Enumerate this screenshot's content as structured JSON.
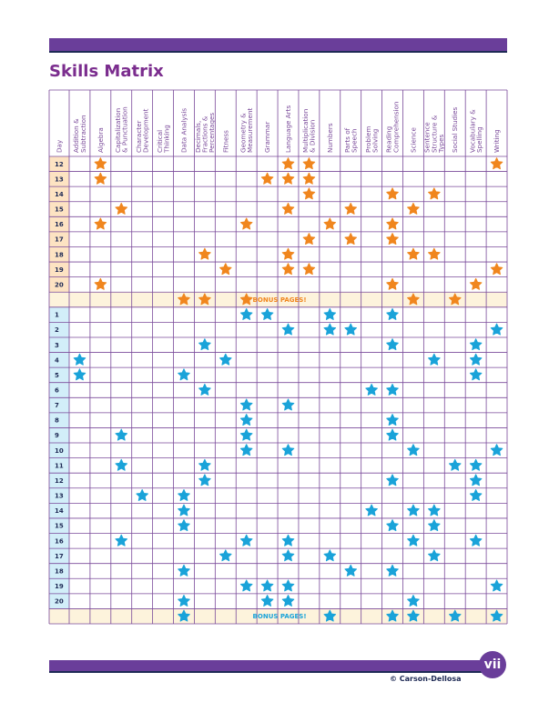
{
  "page": {
    "title": "Skills Matrix",
    "page_number": "vii",
    "copyright": "© Carson-Dellosa"
  },
  "colors": {
    "frame": "#6a3e9a",
    "navy": "#1e2a55",
    "orange_star": "#f0861e",
    "blue_star": "#1aa3d9",
    "orange_label_bg": "#fde3c2",
    "blue_label_bg": "#d2eef9",
    "bonus_row_bg": "#fdf3dc"
  },
  "table": {
    "columns": [
      "Day",
      "Addition & Subtraction",
      "Algebra",
      "Capitalization & Punctuation",
      "Character Development",
      "Critical Thinking",
      "Data Analysis",
      "Decimals, Fractions & Percentages",
      "Fitness",
      "Geometry & Measurement",
      "Grammar",
      "Language Arts",
      "Multiplication & Division",
      "Numbers",
      "Parts of Speech",
      "Problem Solving",
      "Reading Comprehension",
      "Science",
      "Sentence Structure & Types",
      "Social Studies",
      "Vocabulary & Spelling",
      "Writing"
    ],
    "rows": [
      {
        "label": "12",
        "color": "orange",
        "stars": [
          2,
          11,
          12,
          21
        ]
      },
      {
        "label": "13",
        "color": "orange",
        "stars": [
          2,
          10,
          11,
          12
        ]
      },
      {
        "label": "14",
        "color": "orange",
        "stars": [
          12,
          16,
          18
        ]
      },
      {
        "label": "15",
        "color": "orange",
        "stars": [
          3,
          11,
          14,
          17
        ]
      },
      {
        "label": "16",
        "color": "orange",
        "stars": [
          2,
          9,
          13,
          16
        ]
      },
      {
        "label": "17",
        "color": "orange",
        "stars": [
          12,
          14,
          16
        ]
      },
      {
        "label": "18",
        "color": "orange",
        "stars": [
          7,
          11,
          17,
          18
        ]
      },
      {
        "label": "19",
        "color": "orange",
        "stars": [
          8,
          11,
          12,
          21
        ]
      },
      {
        "label": "20",
        "color": "orange",
        "stars": [
          2,
          16,
          20
        ]
      },
      {
        "label": "",
        "color": "orange",
        "bonus": true,
        "stars": [
          6,
          7,
          9,
          17,
          19
        ]
      },
      {
        "label": "1",
        "color": "blue",
        "stars": [
          9,
          10,
          13,
          16
        ]
      },
      {
        "label": "2",
        "color": "blue",
        "stars": [
          11,
          13,
          14,
          21
        ]
      },
      {
        "label": "3",
        "color": "blue",
        "stars": [
          7,
          16,
          20
        ]
      },
      {
        "label": "4",
        "color": "blue",
        "stars": [
          1,
          8,
          18,
          20
        ]
      },
      {
        "label": "5",
        "color": "blue",
        "stars": [
          1,
          6,
          20
        ]
      },
      {
        "label": "6",
        "color": "blue",
        "stars": [
          7,
          15,
          16
        ]
      },
      {
        "label": "7",
        "color": "blue",
        "stars": [
          9,
          11
        ]
      },
      {
        "label": "8",
        "color": "blue",
        "stars": [
          9,
          16
        ]
      },
      {
        "label": "9",
        "color": "blue",
        "stars": [
          3,
          9,
          16
        ]
      },
      {
        "label": "10",
        "color": "blue",
        "stars": [
          9,
          11,
          17,
          21
        ]
      },
      {
        "label": "11",
        "color": "blue",
        "stars": [
          3,
          7,
          19,
          20
        ]
      },
      {
        "label": "12",
        "color": "blue",
        "stars": [
          7,
          16,
          20
        ]
      },
      {
        "label": "13",
        "color": "blue",
        "stars": [
          4,
          6,
          20
        ]
      },
      {
        "label": "14",
        "color": "blue",
        "stars": [
          6,
          15,
          17,
          18
        ]
      },
      {
        "label": "15",
        "color": "blue",
        "stars": [
          6,
          16,
          18
        ]
      },
      {
        "label": "16",
        "color": "blue",
        "stars": [
          3,
          9,
          11,
          17,
          20
        ]
      },
      {
        "label": "17",
        "color": "blue",
        "stars": [
          8,
          11,
          13,
          18
        ]
      },
      {
        "label": "18",
        "color": "blue",
        "stars": [
          6,
          14,
          16
        ]
      },
      {
        "label": "19",
        "color": "blue",
        "stars": [
          9,
          10,
          11,
          21
        ]
      },
      {
        "label": "20",
        "color": "blue",
        "stars": [
          6,
          10,
          11,
          17
        ]
      },
      {
        "label": "",
        "color": "blue",
        "bonus": true,
        "stars": [
          6,
          13,
          16,
          17,
          19,
          21
        ]
      }
    ],
    "bonus_label": "BONUS PAGES!"
  }
}
